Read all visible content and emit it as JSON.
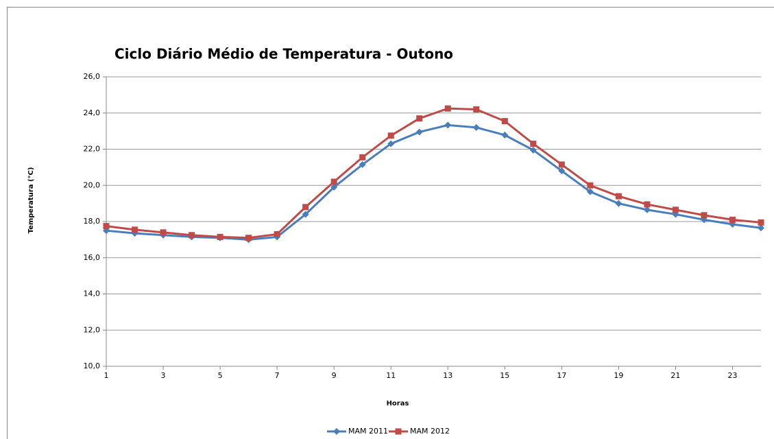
{
  "chart_data": {
    "type": "line",
    "title": "Ciclo Diário Médio de Temperatura - Outono",
    "x_label": "Horas",
    "y_label": "Temperatura (°C)",
    "x": [
      1,
      2,
      3,
      4,
      5,
      6,
      7,
      8,
      9,
      10,
      11,
      12,
      13,
      14,
      15,
      16,
      17,
      18,
      19,
      20,
      21,
      22,
      23,
      24
    ],
    "xlim": [
      1,
      24
    ],
    "xticks": [
      1,
      3,
      5,
      7,
      9,
      11,
      13,
      15,
      17,
      19,
      21,
      23
    ],
    "ylim": [
      10,
      26
    ],
    "yticks": [
      {
        "value": 10,
        "label": "10,0"
      },
      {
        "value": 12,
        "label": "12,0"
      },
      {
        "value": 14,
        "label": "14,0"
      },
      {
        "value": 16,
        "label": "16,0"
      },
      {
        "value": 18,
        "label": "18,0"
      },
      {
        "value": 20,
        "label": "20,0"
      },
      {
        "value": 22,
        "label": "22,0"
      },
      {
        "value": 24,
        "label": "24,0"
      },
      {
        "value": 26,
        "label": "26,0"
      }
    ],
    "grid": true,
    "legend": "bottom",
    "series": [
      {
        "name": "MAM 2011",
        "color": "#4a7ebb",
        "marker": "diamond",
        "values": [
          17.5,
          17.35,
          17.25,
          17.15,
          17.1,
          17.0,
          17.15,
          18.4,
          19.9,
          21.15,
          22.3,
          22.95,
          23.33,
          23.2,
          22.78,
          21.95,
          20.8,
          19.65,
          19.0,
          18.65,
          18.4,
          18.1,
          17.85,
          17.65
        ]
      },
      {
        "name": "MAM 2012",
        "color": "#be4b48",
        "marker": "square",
        "values": [
          17.75,
          17.55,
          17.4,
          17.25,
          17.15,
          17.1,
          17.3,
          18.8,
          20.2,
          21.55,
          22.75,
          23.7,
          24.25,
          24.2,
          23.55,
          22.3,
          21.15,
          20.0,
          19.4,
          18.95,
          18.65,
          18.35,
          18.1,
          17.95
        ]
      }
    ]
  }
}
